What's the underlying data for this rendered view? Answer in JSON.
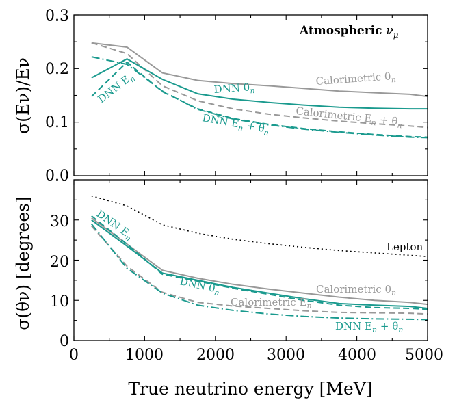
{
  "chart_data": [
    {
      "type": "line",
      "panel": "top",
      "title": "Atmospheric νμ",
      "ylabel": "σ(Eν)/Eν",
      "xlabel": "",
      "xlim": [
        0,
        5000
      ],
      "ylim": [
        0,
        0.3
      ],
      "yticks": [
        "0.0",
        "0.1",
        "0.2",
        "0.3"
      ],
      "x": [
        250,
        750,
        1250,
        1750,
        2250,
        2750,
        3250,
        3750,
        4250,
        4750,
        5000
      ],
      "series": [
        {
          "name": "Calorimetric 0n",
          "color": "#999999",
          "dash": "solid",
          "values": [
            0.248,
            0.24,
            0.192,
            0.178,
            0.172,
            0.168,
            0.163,
            0.158,
            0.155,
            0.152,
            0.148
          ]
        },
        {
          "name": "",
          "color": "#999999",
          "dash": "dashed",
          "values": [
            0.248,
            0.228,
            0.168,
            0.14,
            0.125,
            0.115,
            0.108,
            0.102,
            0.097,
            0.093,
            0.09
          ]
        },
        {
          "name": "DNN 0n",
          "color": "#1a9a8e",
          "dash": "solid",
          "values": [
            0.183,
            0.218,
            0.18,
            0.153,
            0.143,
            0.137,
            0.132,
            0.128,
            0.126,
            0.125,
            0.125
          ]
        },
        {
          "name": "DNN En",
          "color": "#1a9a8e",
          "dash": "dashed",
          "values": [
            0.148,
            0.212,
            0.157,
            0.125,
            0.107,
            0.096,
            0.088,
            0.082,
            0.077,
            0.073,
            0.072
          ]
        },
        {
          "name": "DNN En + θn",
          "color": "#1a9a8e",
          "dash": "dashdot",
          "values": [
            0.222,
            0.208,
            0.158,
            0.124,
            0.106,
            0.095,
            0.087,
            0.081,
            0.076,
            0.072,
            0.071
          ]
        }
      ]
    },
    {
      "type": "line",
      "panel": "bottom",
      "title": "",
      "ylabel": "σ(θν) [degrees]",
      "xlabel": "True neutrino energy [MeV]",
      "xlim": [
        0,
        5000
      ],
      "ylim": [
        0,
        40
      ],
      "yticks": [
        "0",
        "10",
        "20",
        "30"
      ],
      "xticks": [
        "0",
        "1000",
        "2000",
        "3000",
        "4000",
        "5000"
      ],
      "x": [
        250,
        750,
        1250,
        1750,
        2250,
        2750,
        3250,
        3750,
        4250,
        4750,
        5000
      ],
      "series": [
        {
          "name": "Lepton",
          "color": "#000000",
          "dash": "dotted",
          "values": [
            36.0,
            33.5,
            28.8,
            26.7,
            25.2,
            24.1,
            23.2,
            22.4,
            21.8,
            21.2,
            20.9
          ]
        },
        {
          "name": "Calorimetric 0n",
          "color": "#999999",
          "dash": "solid",
          "values": [
            30.5,
            24.0,
            17.5,
            15.5,
            14.0,
            12.8,
            11.8,
            10.8,
            10.0,
            9.5,
            9.0
          ]
        },
        {
          "name": "Calorimetric En",
          "color": "#999999",
          "dash": "dashed",
          "values": [
            28.5,
            18.5,
            12.0,
            9.5,
            8.6,
            8.0,
            7.4,
            7.0,
            6.9,
            6.8,
            6.6
          ]
        },
        {
          "name": "DNN 0n",
          "color": "#1a9a8e",
          "dash": "solid",
          "values": [
            30.0,
            23.5,
            16.8,
            15.0,
            13.2,
            11.8,
            10.4,
            9.2,
            8.8,
            8.5,
            8.0
          ]
        },
        {
          "name": "DNN En",
          "color": "#1a9a8e",
          "dash": "dashed",
          "values": [
            31.0,
            24.0,
            16.5,
            14.8,
            13.0,
            11.5,
            10.0,
            8.8,
            8.2,
            8.0,
            7.8
          ]
        },
        {
          "name": "DNN En + θn",
          "color": "#1a9a8e",
          "dash": "dashdot",
          "values": [
            29.0,
            18.0,
            11.8,
            8.8,
            7.5,
            6.6,
            6.0,
            5.6,
            5.4,
            5.3,
            5.2
          ]
        }
      ]
    }
  ],
  "annotations": {
    "title": "Atmospheric ",
    "title_nu": "ν",
    "title_mu": "μ",
    "top": {
      "calo_0n": "Calorimetric 0",
      "calo_0n_sub": "n",
      "dnn_0n": "DNN 0",
      "dnn_0n_sub": "n",
      "dnn_en": "DNN E",
      "dnn_en_sub": "n",
      "calo_en_thetan": "Calorimetric E",
      "calo_en_thetan_sub1": "n",
      "calo_en_thetan_mid": " + θ",
      "calo_en_thetan_sub2": "n",
      "dnn_en_thetan": "DNN E",
      "dnn_en_thetan_sub1": "n",
      "dnn_en_thetan_mid": " + θ",
      "dnn_en_thetan_sub2": "n"
    },
    "bottom": {
      "dnn_en": "DNN E",
      "dnn_en_sub": "n",
      "lepton": "Lepton",
      "calo_0n": "Calorimetric 0",
      "calo_0n_sub": "n",
      "dnn_0n": "DNN 0",
      "dnn_0n_sub": "n",
      "calo_en": "Calorimetric E",
      "calo_en_sub": "n",
      "dnn_en_thetan": "DNN E",
      "dnn_en_thetan_sub1": "n",
      "dnn_en_thetan_mid": " + θ",
      "dnn_en_thetan_sub2": "n"
    }
  }
}
